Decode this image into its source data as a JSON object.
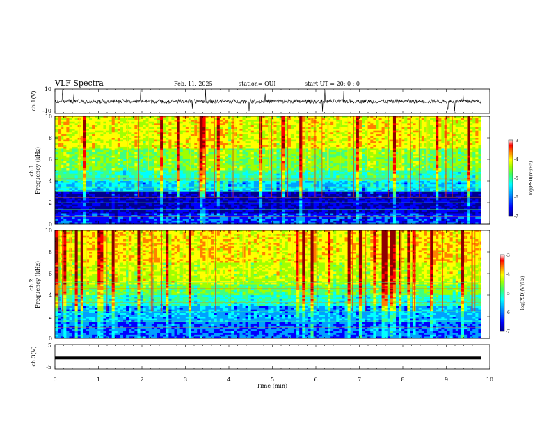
{
  "header": {
    "title": "VLF Spectra",
    "date": "Feb. 11, 2025",
    "station": "station= OUI",
    "start": "start  UT  =   20: 0  : 0"
  },
  "colors": {
    "colormap": [
      "#00008f",
      "#0000ff",
      "#00a0ff",
      "#00ffff",
      "#40ff80",
      "#a0ff00",
      "#ffff00",
      "#ff8000",
      "#ff0000",
      "#8f0000"
    ],
    "spectrogram_low_band": "#00108f",
    "waveform": "#000000"
  },
  "chart_data": [
    {
      "type": "line",
      "id": "ch1-waveform",
      "ylabel": "ch.1(V)",
      "ylim": [
        -10,
        10
      ],
      "yticks": [
        "10",
        "-10"
      ],
      "xlim": [
        0,
        10
      ],
      "description_level": "noisy waveform around 0 V with occasional spikes"
    },
    {
      "type": "heatmap",
      "id": "ch1-spectrogram",
      "ylabel": "ch.1\nFrequency  (kHz)",
      "ylim": [
        0,
        10
      ],
      "yticks": [
        "0",
        "2",
        "4",
        "6",
        "8",
        "10"
      ],
      "xlim": [
        0,
        10
      ],
      "data_extent_min": 9.8,
      "colorbar": {
        "label": "log(PSD)(V²/Hz)",
        "range": [
          -7,
          -3
        ],
        "ticks": [
          "-3",
          "-4",
          "-5",
          "-6",
          "-7"
        ]
      }
    },
    {
      "type": "heatmap",
      "id": "ch2-spectrogram",
      "ylabel": "ch.2\nFrequency  (kHz)",
      "ylim": [
        0,
        10
      ],
      "yticks": [
        "0",
        "2",
        "4",
        "6",
        "8",
        "10"
      ],
      "xlim": [
        0,
        10
      ],
      "data_extent_min": 9.8,
      "colorbar": {
        "label": "log(PSD)(V²/Hz)",
        "range": [
          -7,
          -3
        ],
        "ticks": [
          "-3",
          "-4",
          "-5",
          "-6",
          "-7"
        ]
      }
    },
    {
      "type": "line",
      "id": "ch3-waveform",
      "ylabel": "ch.3(V)",
      "ylim": [
        -5,
        5
      ],
      "yticks": [
        "5",
        "-5"
      ],
      "xlim": [
        0,
        10
      ],
      "xlabel": "Time  (min)",
      "xticks": [
        "0",
        "1",
        "2",
        "3",
        "4",
        "5",
        "6",
        "7",
        "8",
        "9",
        "10"
      ],
      "level": -0.5
    }
  ]
}
